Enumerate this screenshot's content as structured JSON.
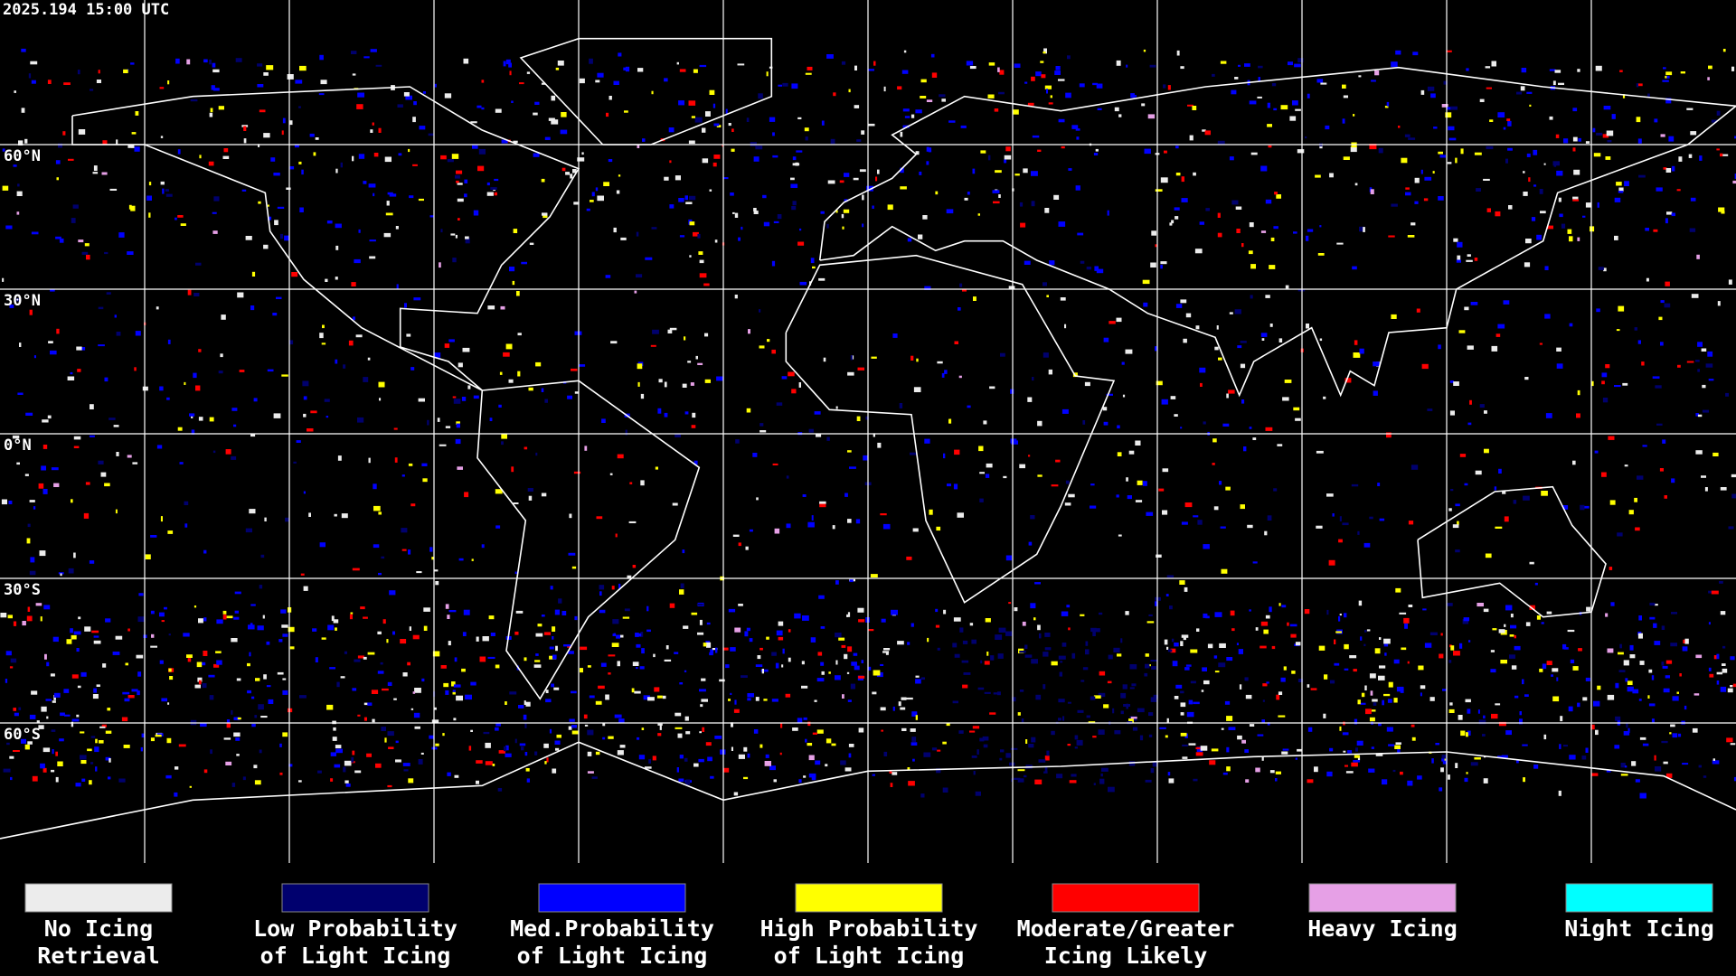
{
  "header": {
    "timestamp": "2025.194 15:00 UTC"
  },
  "latitude_labels": [
    "60°N",
    "30°N",
    "0°N",
    "30°S",
    "60°S"
  ],
  "legend": [
    {
      "label": [
        "No Icing",
        "Retrieval"
      ],
      "color": "#ececec"
    },
    {
      "label": [
        "Low Probability",
        "of Light Icing"
      ],
      "color": "#00006e"
    },
    {
      "label": [
        "Med.Probability",
        "of Light Icing"
      ],
      "color": "#0000ff"
    },
    {
      "label": [
        "High Probability",
        "of Light Icing"
      ],
      "color": "#ffff00"
    },
    {
      "label": [
        "Moderate/Greater",
        "Icing Likely"
      ],
      "color": "#ff0000"
    },
    {
      "label": [
        "Heavy Icing"
      ],
      "color": "#e6a0e6"
    },
    {
      "label": [
        "Night Icing"
      ],
      "color": "#00ffff"
    }
  ]
}
